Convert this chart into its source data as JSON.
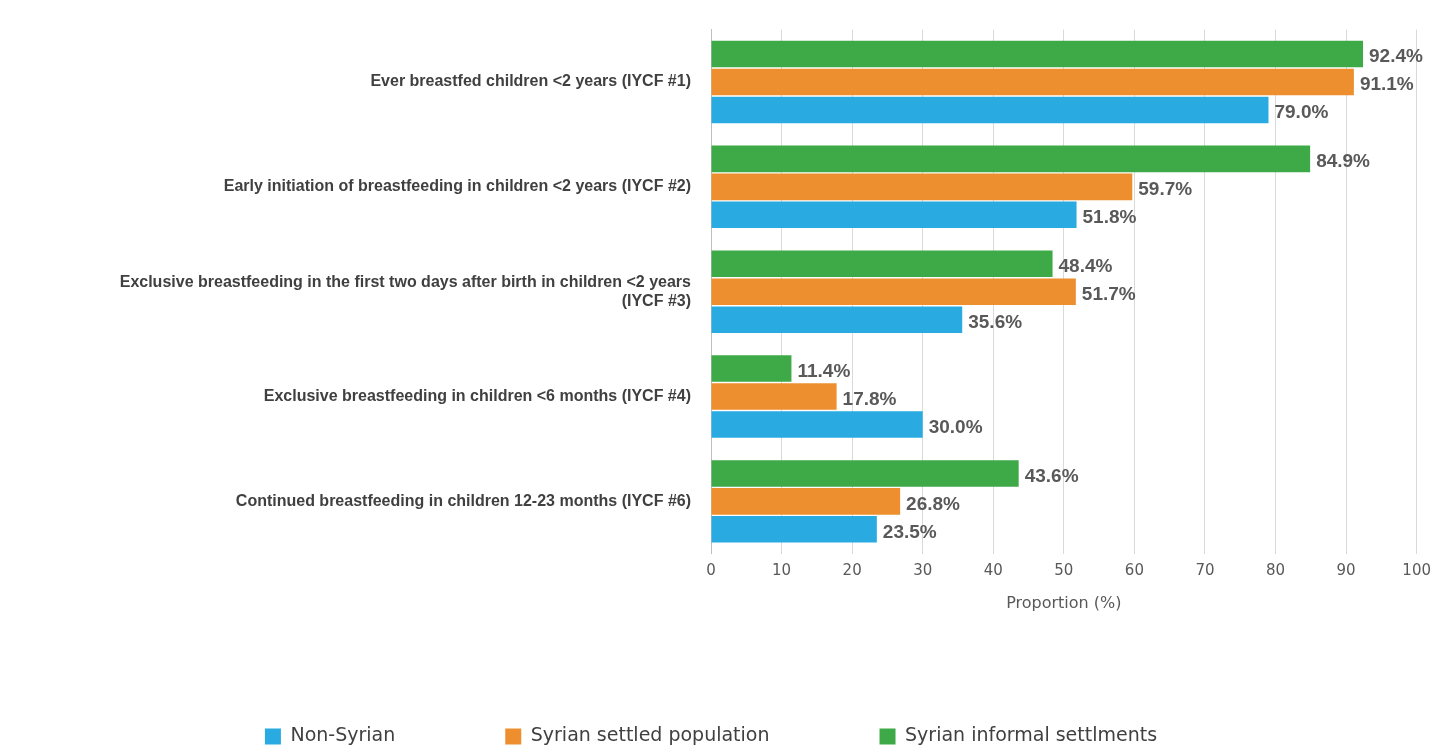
{
  "chart_data": {
    "type": "bar",
    "orientation": "horizontal",
    "xlabel": "Proportion (%)",
    "categories": [
      "Ever breastfed children <2 years (IYCF #1)",
      "Early initiation of breastfeeding in children <2 years (IYCF #2)",
      "Exclusive breastfeeding in the first two days after birth in children <2 years (IYCF #3)",
      "Exclusive breastfeeding in children <6 months (IYCF #4)",
      "Continued breastfeeding in children 12-23 months (IYCF #6)"
    ],
    "series": [
      {
        "name": "Non-Syrian",
        "color": "#29abe2",
        "values": [
          79.0,
          51.8,
          35.6,
          30.0,
          23.5
        ],
        "value_labels": [
          "79.0%",
          "51.8%",
          "35.6%",
          "30.0%",
          "23.5%"
        ]
      },
      {
        "name": "Syrian settled population",
        "color": "#ed8f2f",
        "values": [
          91.1,
          59.7,
          51.7,
          17.8,
          26.8
        ],
        "value_labels": [
          "91.1%",
          "59.7%",
          "51.7%",
          "17.8%",
          "26.8%"
        ]
      },
      {
        "name": "Syrian informal settlments",
        "color": "#3daa47",
        "values": [
          92.4,
          84.9,
          48.4,
          11.4,
          43.6
        ],
        "value_labels": [
          "92.4%",
          "84.9%",
          "48.4%",
          "11.4%",
          "43.6%"
        ]
      }
    ],
    "xlim": [
      0,
      100
    ],
    "xticks": [
      0,
      10,
      20,
      30,
      40,
      50,
      60,
      70,
      80,
      90,
      100
    ],
    "grid": "x",
    "legend": "bottom"
  }
}
